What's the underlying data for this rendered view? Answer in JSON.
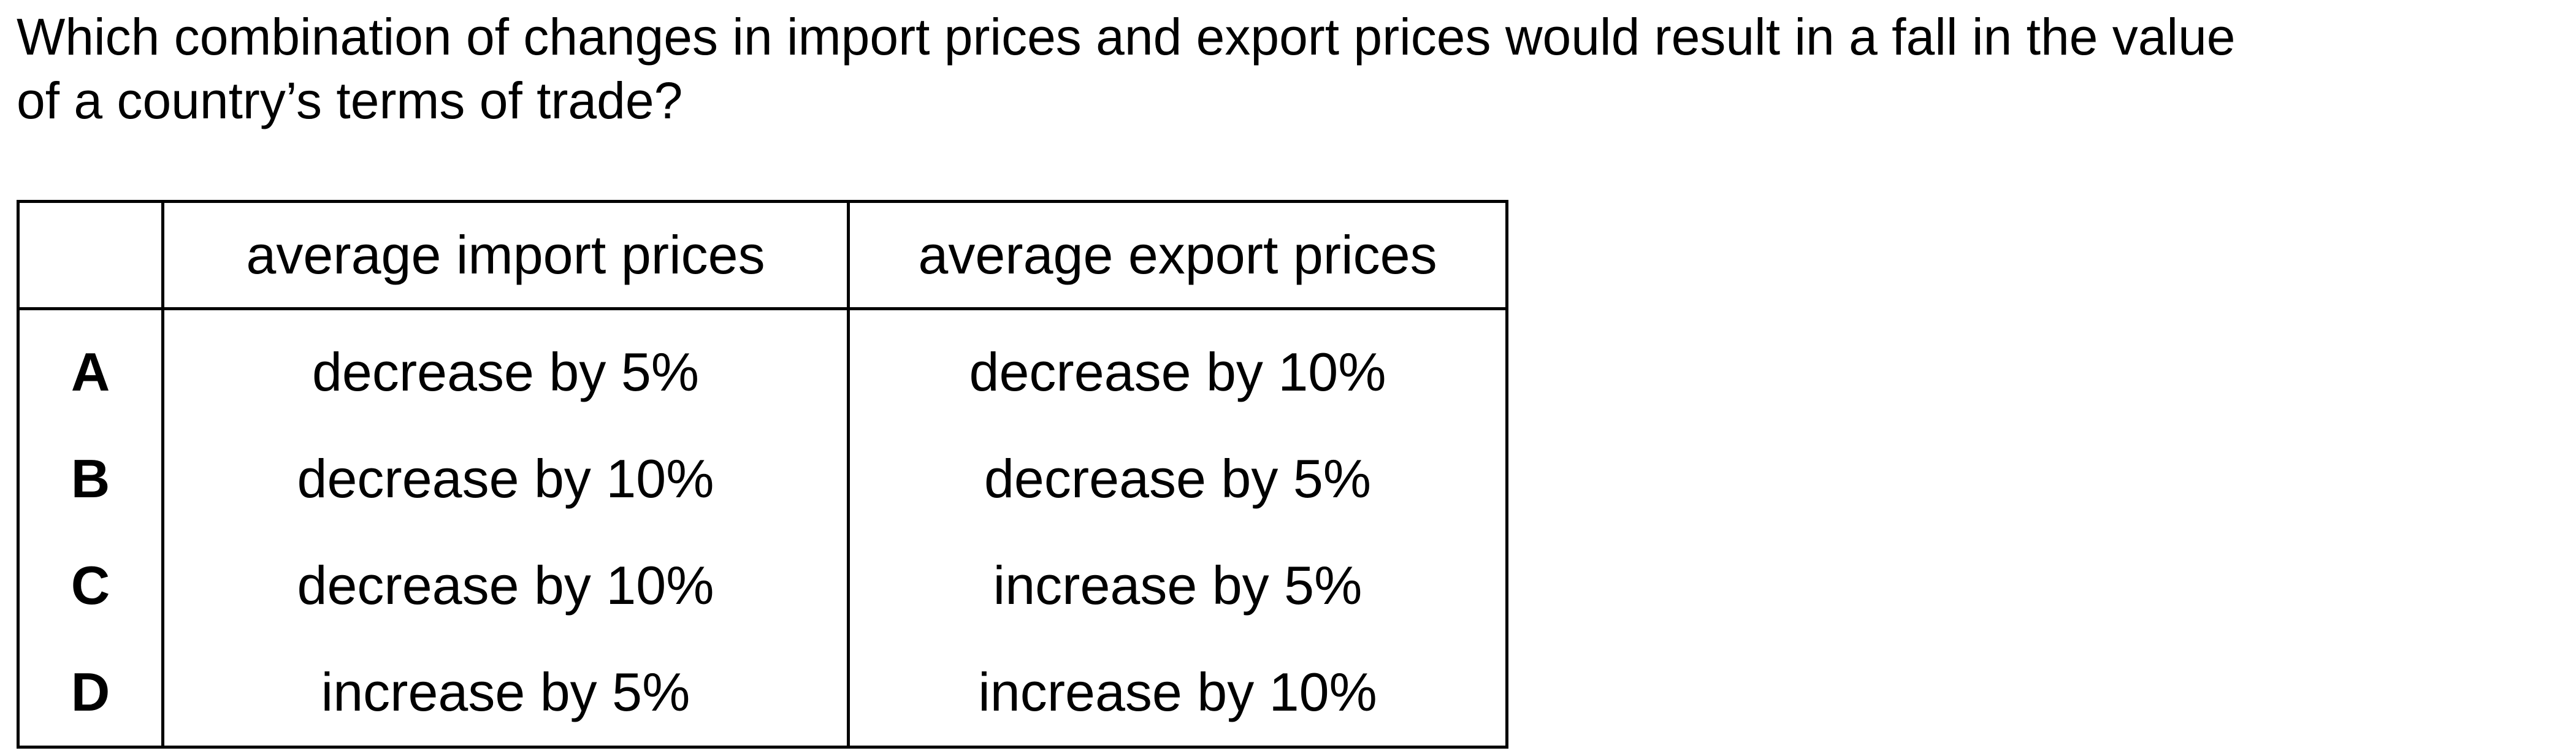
{
  "question": {
    "line1": "Which combination of changes in import prices and export prices would result in a fall in the value",
    "line2": "of a country’s terms of trade?"
  },
  "table": {
    "headers": [
      "",
      "average import prices",
      "average export prices"
    ],
    "rows": [
      {
        "key": "A",
        "import": "decrease by 5%",
        "export": "decrease by 10%"
      },
      {
        "key": "B",
        "import": "decrease by 10%",
        "export": "decrease by 5%"
      },
      {
        "key": "C",
        "import": "decrease by 10%",
        "export": "increase by 5%"
      },
      {
        "key": "D",
        "import": "increase by 5%",
        "export": "increase by 10%"
      }
    ]
  }
}
